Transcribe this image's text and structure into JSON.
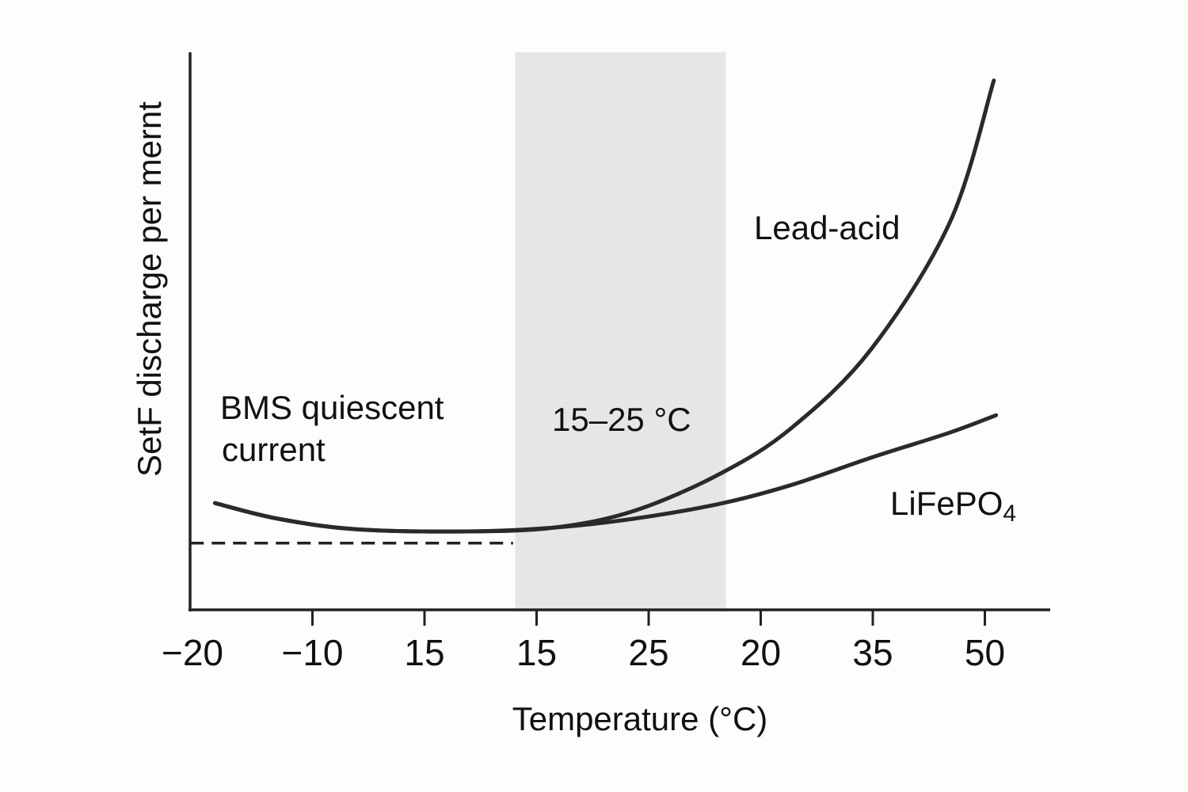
{
  "chart_data": {
    "type": "line",
    "title": "",
    "xlabel": "Temperature (°C)",
    "ylabel": "SetF discharge per mernt",
    "x_tick_labels": [
      "−20",
      "−10",
      "15",
      "15",
      "25",
      "20",
      "35",
      "50"
    ],
    "x_note": "x values are positions along the axis, in tick-index units (0 = first tick label, 7 = last)",
    "xlim": [
      -0.1,
      7.6
    ],
    "ylim": [
      0,
      100
    ],
    "y_ticks": false,
    "grid": false,
    "series": [
      {
        "name": "Lead-acid",
        "color": "#2a2a2a",
        "x": [
          0.13,
          0.69,
          1.39,
          2.38,
          3.16,
          3.87,
          4.64,
          5.28,
          5.99,
          6.69,
          7.08
        ],
        "y": [
          19.2,
          16.4,
          14.5,
          14.1,
          14.8,
          17.8,
          24.5,
          32.8,
          47.0,
          69.8,
          95.2
        ]
      },
      {
        "name": "LiFePO4",
        "color": "#2a2a2a",
        "x": [
          0.13,
          0.69,
          1.39,
          2.38,
          3.16,
          3.87,
          4.64,
          5.28,
          5.99,
          6.69,
          7.1
        ],
        "y": [
          19.2,
          16.4,
          14.5,
          14.1,
          14.8,
          16.4,
          19.1,
          22.5,
          27.4,
          31.9,
          35.0
        ]
      }
    ],
    "reference_line": {
      "label": "BMS quiescent current",
      "y": 12.0,
      "x_range": [
        -0.09,
        2.79
      ],
      "style": "dashed"
    },
    "shaded_band": {
      "label": "15–25 °C",
      "x_range": [
        2.81,
        4.69
      ],
      "color": "#e6e6e4"
    },
    "annotations": {
      "lead_acid": "Lead-acid",
      "lifepo4_main": "LiFePO",
      "lifepo4_sub": "4",
      "bms_line1": "BMS quiescent",
      "bms_line2": "current",
      "band": "15–25 °C"
    }
  }
}
